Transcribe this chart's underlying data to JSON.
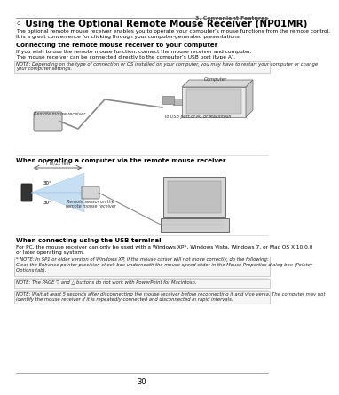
{
  "page_number": "30",
  "chapter": "3. Convenient Features",
  "title": "◦ Using the Optional Remote Mouse Receiver (NP01MR)",
  "intro_line1": "The optional remote mouse receiver enables you to operate your computer’s mouse functions from the remote control.",
  "intro_line2": "It is a great convenience for clicking through your computer-generated presentations.",
  "section1_title": "Connecting the remote mouse receiver to your computer",
  "section1_line1": "If you wish to use the remote mouse function, connect the mouse receiver and computer.",
  "section1_line2": "The mouse receiver can be connected directly to the computer’s USB port (type A).",
  "note1_line1": "NOTE: Depending on the type of connection or OS installed on your computer, you may have to restart your computer or change",
  "note1_line2": "your computer settings.",
  "label_computer": "Computer",
  "label_receiver": "Remote mouse receiver",
  "label_usb": "To USB port of PC or Macintosh",
  "section2_title": "When operating a computer via the remote mouse receiver",
  "label_distance": "7 m/22 feet",
  "label_angle1": "30°",
  "label_angle2": "30°",
  "label_sensor1": "Remote sensor on the",
  "label_sensor2": "remote mouse receiver",
  "section3_title": "When connecting using the USB terminal",
  "section3_line1": "For PC, the mouse receiver can only be used with a Windows XP*, Windows Vista, Windows 7, or Mac OS X 10.0.0",
  "section3_line2": "or later operating system.",
  "note2_line1": "* NOTE: In SP1 or older version of Windows XP, if the mouse cursor will not move correctly, do the following:",
  "note2_line2": "Clear the Enhance pointer precision check box underneath the mouse speed slider in the Mouse Properties dialog box (Pointer",
  "note2_line3": "Options tab).",
  "note3": "NOTE: The PAGE ▽ and △ buttons do not work with PowerPoint for Macintosh.",
  "note4_line1": "NOTE: Wait at least 5 seconds after disconnecting the mouse receiver before reconnecting it and vice versa. The computer may not",
  "note4_line2": "identify the mouse receiver if it is repeatedly connected and disconnected in rapid intervals.",
  "bg_color": "#ffffff"
}
